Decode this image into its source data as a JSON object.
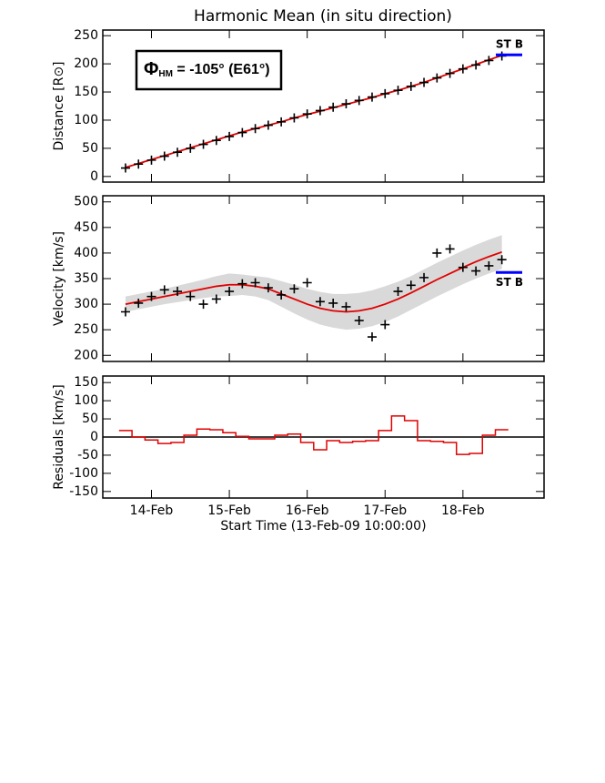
{
  "title": "Harmonic Mean (in situ direction)",
  "chart_data": [
    {
      "type": "scatter",
      "ylabel": "Distance [R⊙]",
      "x": [
        6,
        10,
        14,
        18,
        22,
        26,
        30,
        34,
        38,
        42,
        46,
        50,
        54,
        58,
        62,
        66,
        70,
        74,
        78,
        82,
        86,
        90,
        94,
        98,
        102,
        106,
        110,
        114,
        118,
        122
      ],
      "points": [
        15,
        22,
        29,
        36,
        43,
        50,
        57,
        64,
        71,
        78,
        85,
        91,
        97,
        104,
        111,
        117,
        123,
        129,
        135,
        141,
        147,
        153,
        160,
        167,
        175,
        183,
        191,
        198,
        206,
        214
      ],
      "fit": [
        16,
        23,
        30,
        37,
        44,
        51,
        58,
        65,
        72,
        79,
        85,
        91,
        97,
        104,
        110,
        116,
        122,
        128,
        134,
        140,
        147,
        153,
        160,
        167,
        175,
        183,
        191,
        199,
        207,
        215
      ],
      "point_color": "#000000",
      "fit_color": "#e00000",
      "ylim": [
        -10,
        260
      ],
      "yticks": [
        0,
        50,
        100,
        150,
        200,
        250
      ],
      "annotation": {
        "symbol": "Φ",
        "sub": "HM",
        "text": " = -105° (E61°)"
      },
      "stb": {
        "label": "ST B",
        "value": 216,
        "color": "#0000ff"
      }
    },
    {
      "type": "scatter",
      "ylabel": "Velocity [km/s]",
      "x": [
        6,
        10,
        14,
        18,
        22,
        26,
        30,
        34,
        38,
        42,
        46,
        50,
        54,
        58,
        62,
        66,
        70,
        74,
        78,
        82,
        86,
        90,
        94,
        98,
        102,
        106,
        110,
        114,
        118,
        122
      ],
      "points": [
        285,
        302,
        315,
        328,
        325,
        315,
        300,
        310,
        325,
        340,
        342,
        332,
        318,
        330,
        342,
        305,
        302,
        295,
        268,
        236,
        260,
        325,
        337,
        352,
        400,
        408,
        372,
        365,
        375,
        387
      ],
      "fit": [
        300,
        305,
        310,
        315,
        320,
        325,
        330,
        335,
        338,
        338,
        335,
        330,
        320,
        310,
        300,
        292,
        287,
        285,
        287,
        292,
        300,
        310,
        322,
        335,
        348,
        360,
        372,
        383,
        393,
        402
      ],
      "band_lower": [
        285,
        290,
        295,
        300,
        304,
        308,
        312,
        315,
        316,
        318,
        315,
        308,
        295,
        282,
        270,
        260,
        254,
        250,
        252,
        257,
        265,
        276,
        289,
        302,
        315,
        327,
        339,
        350,
        360,
        369
      ],
      "band_upper": [
        315,
        320,
        325,
        330,
        336,
        342,
        348,
        355,
        360,
        358,
        355,
        352,
        345,
        338,
        330,
        324,
        320,
        320,
        322,
        327,
        335,
        344,
        355,
        368,
        381,
        393,
        405,
        416,
        426,
        435
      ],
      "band_color": "#d9d9d9",
      "point_color": "#000000",
      "fit_color": "#e00000",
      "ylim": [
        188,
        512
      ],
      "yticks": [
        200,
        250,
        300,
        350,
        400,
        450,
        500
      ],
      "stb": {
        "label": "ST B",
        "value": 362,
        "color": "#0000ff"
      }
    },
    {
      "type": "step",
      "ylabel": "Residuals [km/s]",
      "xlabel": "Start Time (13-Feb-09 10:00:00)",
      "x": [
        6,
        10,
        14,
        18,
        22,
        26,
        30,
        34,
        38,
        42,
        46,
        50,
        54,
        58,
        62,
        66,
        70,
        74,
        78,
        82,
        86,
        90,
        94,
        98,
        102,
        106,
        110,
        114,
        118,
        122
      ],
      "values": [
        18,
        0,
        -8,
        -18,
        -15,
        5,
        22,
        20,
        12,
        2,
        -5,
        -5,
        5,
        8,
        -15,
        -35,
        -10,
        -15,
        -12,
        -10,
        18,
        58,
        45,
        -10,
        -12,
        -15,
        -48,
        -45,
        5,
        20
      ],
      "color": "#e00000",
      "ylim": [
        -168,
        168
      ],
      "yticks": [
        150,
        100,
        50,
        0,
        -50,
        -100,
        -150
      ],
      "xlim": [
        -1,
        135
      ],
      "xticks": [
        {
          "value": 14,
          "label": "14-Feb"
        },
        {
          "value": 38,
          "label": "15-Feb"
        },
        {
          "value": 62,
          "label": "16-Feb"
        },
        {
          "value": 86,
          "label": "17-Feb"
        },
        {
          "value": 110,
          "label": "18-Feb"
        }
      ]
    }
  ]
}
